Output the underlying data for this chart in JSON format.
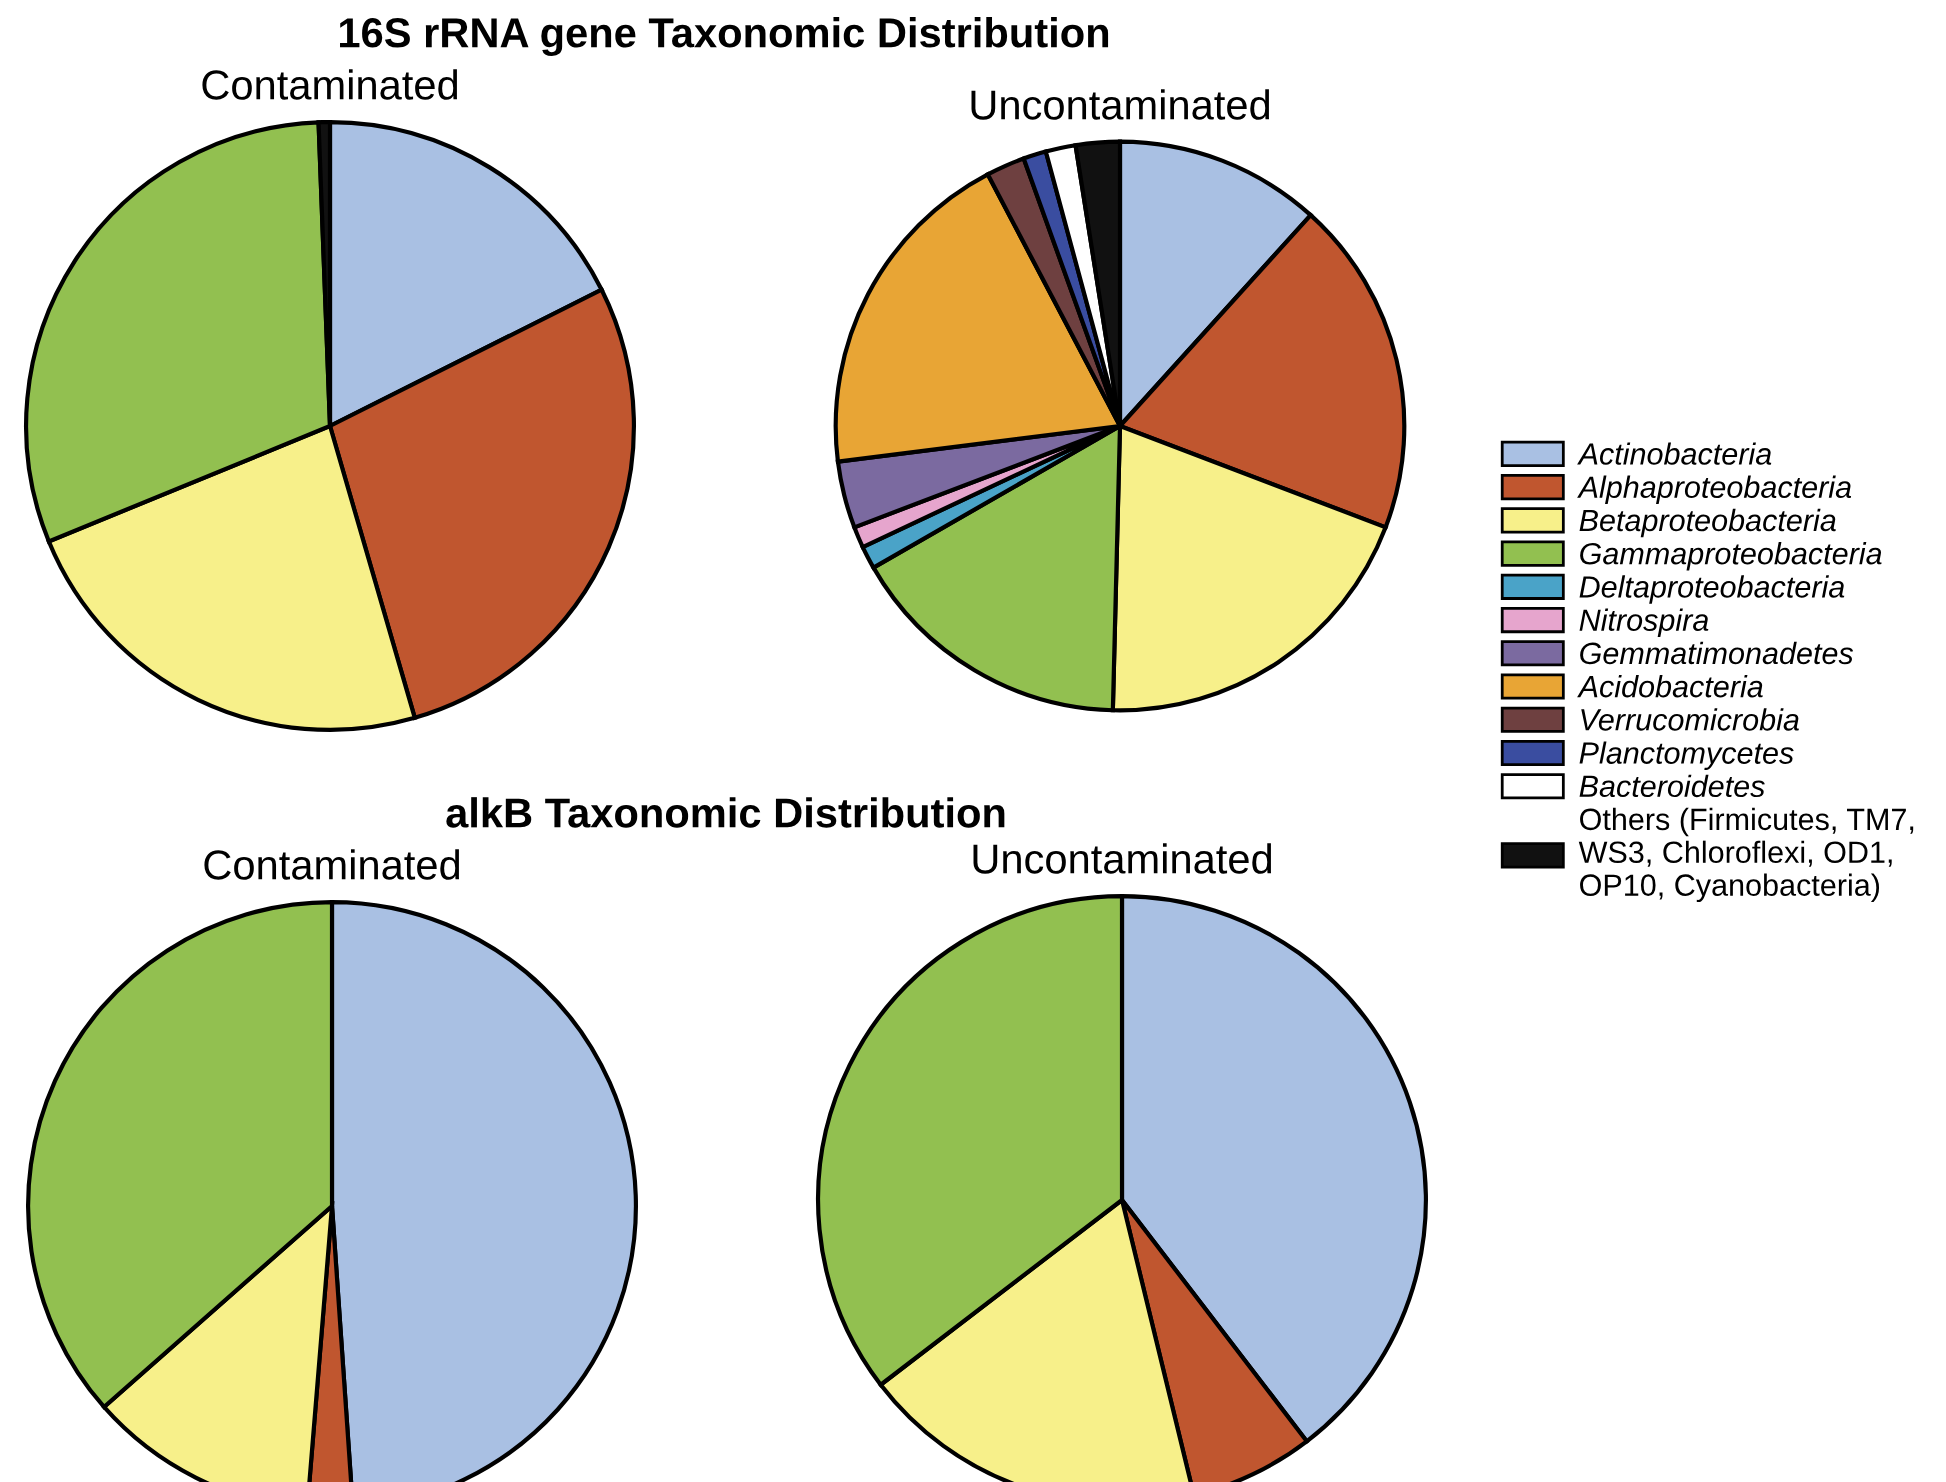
{
  "chart_data": [
    {
      "type": "pie",
      "title": "16S rRNA gene Taxonomic Distribution",
      "subtitle": "Contaminated",
      "legend": "right",
      "categories": [
        "Actinobacteria",
        "Alphaproteobacteria",
        "Betaproteobacteria",
        "Gammaproteobacteria",
        "Deltaproteobacteria",
        "Nitrospira",
        "Gemmatimonadetes",
        "Acidobacteria",
        "Verrucomicrobia",
        "Planctomycetes",
        "Bacteroidetes",
        "Others (Firmicutes, TM7,\nWS3, Chloroflexi, OD1,\nOP10, Cyanobacteria)"
      ],
      "values": [
        17.6,
        27.9,
        23.3,
        30.6,
        null,
        null,
        null,
        null,
        null,
        null,
        null,
        0.6
      ],
      "colors": [
        "#a9c0e3",
        "#c0562f",
        "#f7f08a",
        "#92c050",
        "#4aa3c8",
        "#e6a5cd",
        "#7b6aa0",
        "#e8a535",
        "#6e4040",
        "#3a4da0",
        "#ffffff",
        "#111111"
      ]
    },
    {
      "type": "pie",
      "subtitle": "Uncontaminated",
      "categories": [
        null,
        null,
        null,
        null,
        null,
        null,
        null,
        null,
        null,
        null,
        null,
        null
      ],
      "values": [
        11.7,
        19.1,
        19.6,
        16.3,
        1.3,
        1.2,
        3.8,
        19.3,
        2.2,
        1.3,
        1.7,
        2.5
      ],
      "colors": [
        "#a9c0e3",
        "#c0562f",
        "#f7f08a",
        "#92c050",
        "#4aa3c8",
        "#e6a5cd",
        "#7b6aa0",
        "#e8a535",
        "#6e4040",
        "#3a4da0",
        "#ffffff",
        "#111111"
      ]
    },
    {
      "type": "pie",
      "title": "alkB Taxonomic Distribution",
      "subtitle": "Contaminated",
      "categories": [
        null,
        null,
        null,
        null
      ],
      "values": [
        48.9,
        2.4,
        12.2,
        36.5
      ],
      "colors": [
        "#a9c0e3",
        "#c0562f",
        "#f7f08a",
        "#92c050"
      ]
    },
    {
      "type": "pie",
      "subtitle": "Uncontaminated",
      "categories": [
        null,
        null,
        null,
        null
      ],
      "values": [
        39.6,
        6.6,
        18.4,
        35.4
      ],
      "colors": [
        "#a9c0e3",
        "#c0562f",
        "#f7f08a",
        "#92c050"
      ]
    }
  ]
}
